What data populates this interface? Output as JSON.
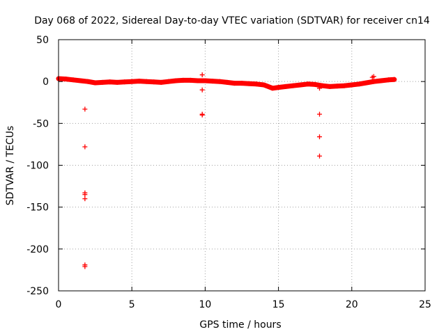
{
  "chart_data": {
    "type": "scatter",
    "title": "Day 068 of 2022, Sidereal Day-to-day VTEC variation (SDTVAR) for receiver cn14",
    "xlabel": "GPS time / hours",
    "ylabel": "SDTVAR / TECUs",
    "xlim": [
      0,
      25
    ],
    "ylim": [
      -250,
      50
    ],
    "x_ticks": [
      "0",
      "5",
      "10",
      "15",
      "20",
      "25"
    ],
    "y_ticks": [
      "50",
      "0",
      "-50",
      "-100",
      "-150",
      "-200",
      "-250"
    ],
    "grid": true,
    "marker": "+",
    "series": [
      {
        "name": "SDTVAR",
        "color": "#ff0000",
        "baseline": [
          [
            0.0,
            3.5
          ],
          [
            0.5,
            3
          ],
          [
            1.0,
            2
          ],
          [
            1.5,
            1
          ],
          [
            2.0,
            0
          ],
          [
            2.5,
            -1.5
          ],
          [
            3.0,
            -1
          ],
          [
            3.5,
            -0.5
          ],
          [
            4.0,
            -1
          ],
          [
            4.5,
            -0.5
          ],
          [
            5.0,
            0
          ],
          [
            5.5,
            0.5
          ],
          [
            6.0,
            0
          ],
          [
            6.5,
            -0.5
          ],
          [
            7.0,
            -1
          ],
          [
            7.5,
            0
          ],
          [
            8.0,
            1
          ],
          [
            8.5,
            1.5
          ],
          [
            9.0,
            1.5
          ],
          [
            9.5,
            1
          ],
          [
            10.0,
            1
          ],
          [
            10.5,
            0.5
          ],
          [
            11.0,
            0
          ],
          [
            11.5,
            -1
          ],
          [
            12.0,
            -2
          ],
          [
            12.5,
            -2
          ],
          [
            13.0,
            -2.5
          ],
          [
            13.5,
            -3
          ],
          [
            14.0,
            -4
          ],
          [
            14.3,
            -6
          ],
          [
            14.6,
            -8
          ],
          [
            15.0,
            -7
          ],
          [
            15.5,
            -6
          ],
          [
            16.0,
            -5
          ],
          [
            16.5,
            -4
          ],
          [
            17.0,
            -3
          ],
          [
            17.5,
            -3.5
          ],
          [
            18.0,
            -5
          ],
          [
            18.5,
            -6
          ],
          [
            19.0,
            -5.5
          ],
          [
            19.5,
            -5
          ],
          [
            20.0,
            -4
          ],
          [
            20.5,
            -3
          ],
          [
            21.0,
            -1.5
          ],
          [
            21.5,
            0
          ],
          [
            22.0,
            1
          ],
          [
            22.5,
            2
          ],
          [
            22.9,
            2.5
          ]
        ],
        "points": [
          [
            1.8,
            -33
          ],
          [
            1.8,
            -78
          ],
          [
            1.8,
            -133
          ],
          [
            1.8,
            -135
          ],
          [
            1.8,
            -140
          ],
          [
            1.8,
            -219
          ],
          [
            1.8,
            -221
          ],
          [
            9.8,
            8
          ],
          [
            9.8,
            -10
          ],
          [
            9.8,
            -39
          ],
          [
            9.8,
            -40
          ],
          [
            17.8,
            -39
          ],
          [
            17.8,
            -66
          ],
          [
            17.8,
            -89
          ],
          [
            17.8,
            -8
          ],
          [
            21.4,
            5
          ],
          [
            21.5,
            6
          ]
        ]
      }
    ]
  }
}
